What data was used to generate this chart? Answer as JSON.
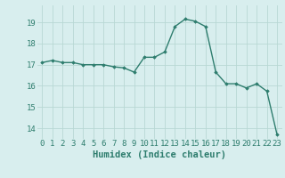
{
  "x": [
    0,
    1,
    2,
    3,
    4,
    5,
    6,
    7,
    8,
    9,
    10,
    11,
    12,
    13,
    14,
    15,
    16,
    17,
    18,
    19,
    20,
    21,
    22,
    23
  ],
  "y": [
    17.1,
    17.2,
    17.1,
    17.1,
    17.0,
    17.0,
    17.0,
    16.9,
    16.85,
    16.65,
    17.35,
    17.35,
    17.6,
    18.8,
    19.15,
    19.05,
    18.8,
    16.65,
    16.1,
    16.1,
    15.9,
    16.1,
    15.75,
    13.7
  ],
  "line_color": "#2e7d6e",
  "marker": "D",
  "marker_size": 1.8,
  "line_width": 1.0,
  "xlabel": "Humidex (Indice chaleur)",
  "ylim": [
    13.5,
    19.8
  ],
  "yticks": [
    14,
    15,
    16,
    17,
    18,
    19
  ],
  "xticks": [
    0,
    1,
    2,
    3,
    4,
    5,
    6,
    7,
    8,
    9,
    10,
    11,
    12,
    13,
    14,
    15,
    16,
    17,
    18,
    19,
    20,
    21,
    22,
    23
  ],
  "bg_color": "#d8eeee",
  "grid_color": "#b8d8d4",
  "tick_label_color": "#2e7d6e",
  "xlabel_color": "#2e7d6e",
  "xlabel_fontsize": 7.5,
  "tick_fontsize": 6.5
}
